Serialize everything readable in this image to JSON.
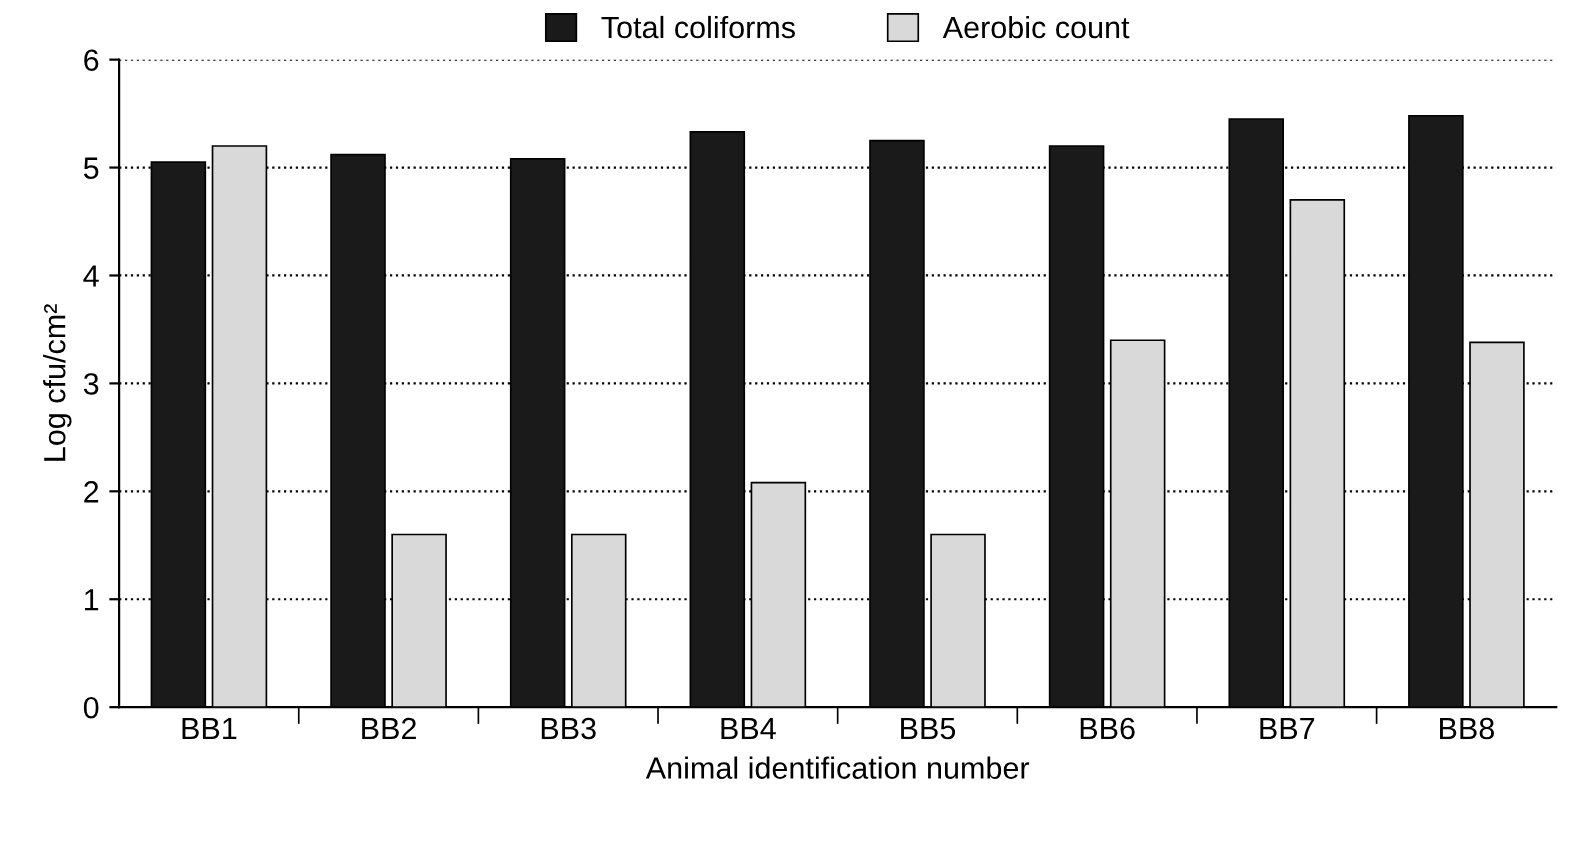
{
  "chart_data": {
    "type": "bar",
    "xlabel": "Animal identification number",
    "ylabel": "Log cfu/cm²",
    "categories": [
      "BB1",
      "BB2",
      "BB3",
      "BB4",
      "BB5",
      "BB6",
      "BB7",
      "BB8"
    ],
    "series": [
      {
        "name": "Total coliforms",
        "color": "#1a1a1a",
        "values": [
          5.05,
          5.12,
          5.08,
          5.33,
          5.25,
          5.2,
          5.45,
          5.48
        ]
      },
      {
        "name": "Aerobic count",
        "color": "#d9d9d9",
        "values": [
          5.2,
          1.6,
          1.6,
          2.08,
          1.6,
          3.4,
          4.7,
          3.38
        ]
      }
    ],
    "ylim": [
      0,
      6
    ],
    "yticks": [
      0,
      1,
      2,
      3,
      4,
      5,
      6
    ],
    "grid": "y",
    "legend": "top",
    "line_style": "dotted"
  }
}
